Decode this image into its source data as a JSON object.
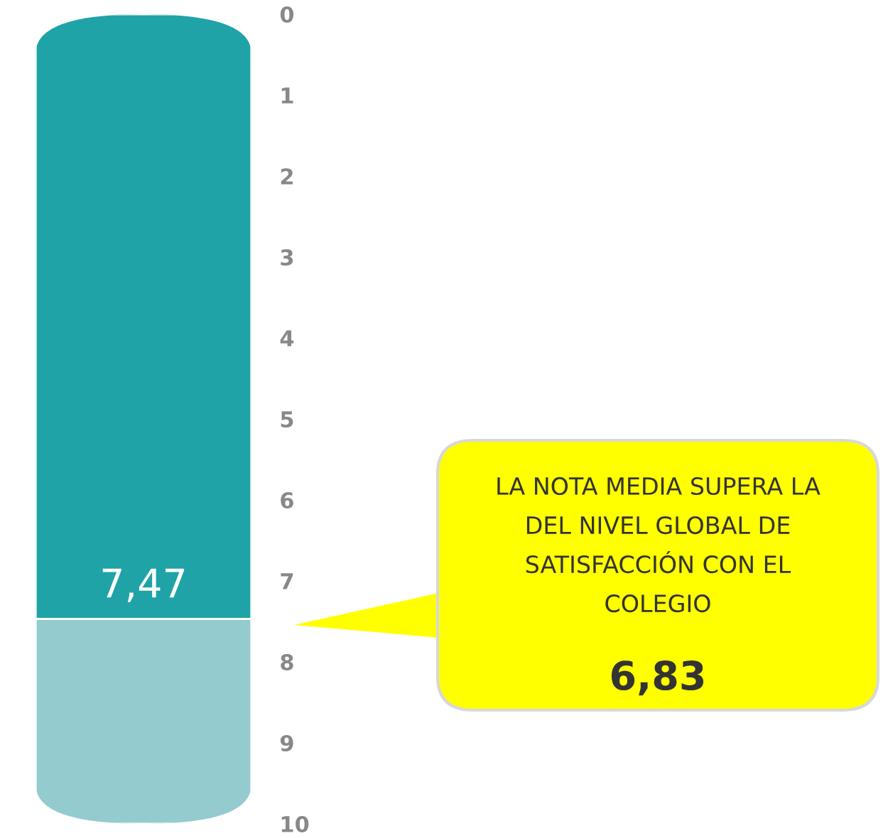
{
  "chart_data": {
    "type": "bar",
    "stacked": true,
    "categories": [
      null
    ],
    "series": [
      {
        "color": "#1fa3a6",
        "values": [
          7.47
        ],
        "value_labels": [
          "7,47"
        ]
      },
      {
        "color": "#93cbcf",
        "values": [
          2.53
        ]
      }
    ],
    "ylim": [
      10,
      0
    ],
    "yticks": [
      0,
      1,
      2,
      3,
      4,
      5,
      6,
      7,
      8,
      9,
      10
    ],
    "annotations": [
      "LA NOTA MEDIA SUPERA LA\nDEL NIVEL GLOBAL DE\nSATISFACCIÓN CON EL\nCOLEGIO",
      "6,83"
    ]
  }
}
